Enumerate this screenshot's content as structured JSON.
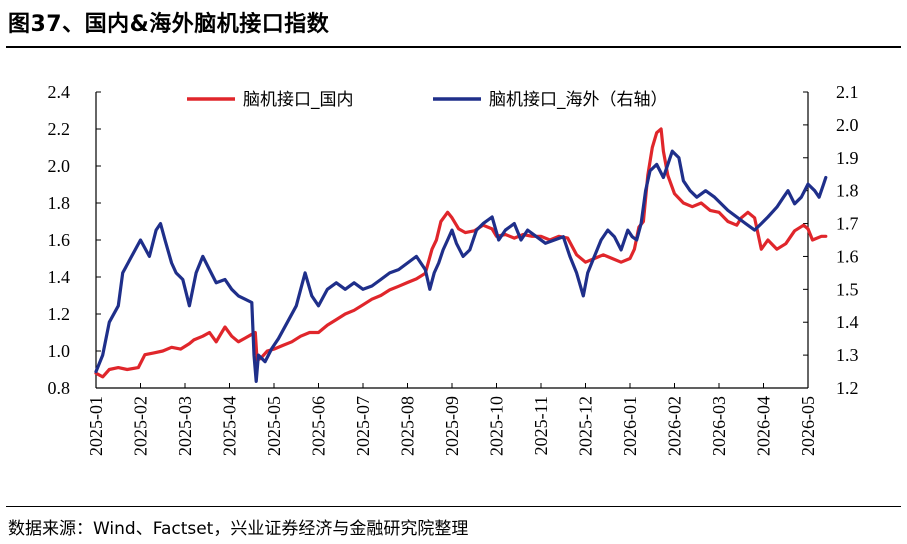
{
  "header": {
    "title": "图37、国内&海外脑机接口指数"
  },
  "footer": {
    "source": "数据来源：Wind、Factset，兴业证券经济与金融研究院整理"
  },
  "chart_data": {
    "type": "line",
    "xlabel": "",
    "ylabel": "",
    "categories": [
      "2025-01",
      "2025-02",
      "2025-03",
      "2025-04",
      "2025-05",
      "2025-06",
      "2025-07",
      "2025-08",
      "2025-09",
      "2025-10",
      "2025-11",
      "2025-12",
      "2026-01",
      "2026-02",
      "2026-03",
      "2026-04",
      "2026-05"
    ],
    "ylim_left": [
      0.8,
      2.4
    ],
    "ylim_right": [
      1.2,
      2.1
    ],
    "yticks_left": [
      "0.8",
      "1.0",
      "1.2",
      "1.4",
      "1.6",
      "1.8",
      "2.0",
      "2.2",
      "2.4"
    ],
    "yticks_right": [
      "1.2",
      "1.3",
      "1.4",
      "1.5",
      "1.6",
      "1.7",
      "1.8",
      "1.9",
      "2.0",
      "2.1"
    ],
    "legend_position": "top",
    "grid": false,
    "series": [
      {
        "name": "脑机接口_国内",
        "axis": "left",
        "color": "#e0262b",
        "points": [
          [
            0.0,
            0.88
          ],
          [
            0.15,
            0.86
          ],
          [
            0.3,
            0.9
          ],
          [
            0.5,
            0.91
          ],
          [
            0.7,
            0.9
          ],
          [
            0.95,
            0.91
          ],
          [
            1.1,
            0.98
          ],
          [
            1.3,
            0.99
          ],
          [
            1.5,
            1.0
          ],
          [
            1.7,
            1.02
          ],
          [
            1.9,
            1.01
          ],
          [
            2.1,
            1.04
          ],
          [
            2.2,
            1.06
          ],
          [
            2.4,
            1.08
          ],
          [
            2.55,
            1.1
          ],
          [
            2.7,
            1.05
          ],
          [
            2.8,
            1.09
          ],
          [
            2.9,
            1.13
          ],
          [
            3.05,
            1.08
          ],
          [
            3.2,
            1.05
          ],
          [
            3.35,
            1.07
          ],
          [
            3.5,
            1.09
          ],
          [
            3.58,
            1.1
          ],
          [
            3.62,
            0.95
          ],
          [
            3.7,
            0.96
          ],
          [
            3.85,
            1.0
          ],
          [
            4.0,
            1.01
          ],
          [
            4.2,
            1.03
          ],
          [
            4.4,
            1.05
          ],
          [
            4.6,
            1.08
          ],
          [
            4.8,
            1.1
          ],
          [
            5.0,
            1.1
          ],
          [
            5.2,
            1.14
          ],
          [
            5.4,
            1.17
          ],
          [
            5.6,
            1.2
          ],
          [
            5.8,
            1.22
          ],
          [
            6.0,
            1.25
          ],
          [
            6.2,
            1.28
          ],
          [
            6.4,
            1.3
          ],
          [
            6.6,
            1.33
          ],
          [
            6.8,
            1.35
          ],
          [
            7.0,
            1.37
          ],
          [
            7.2,
            1.39
          ],
          [
            7.4,
            1.42
          ],
          [
            7.55,
            1.55
          ],
          [
            7.65,
            1.6
          ],
          [
            7.75,
            1.7
          ],
          [
            7.9,
            1.75
          ],
          [
            8.0,
            1.72
          ],
          [
            8.15,
            1.66
          ],
          [
            8.3,
            1.64
          ],
          [
            8.5,
            1.65
          ],
          [
            8.7,
            1.68
          ],
          [
            8.9,
            1.66
          ],
          [
            9.0,
            1.62
          ],
          [
            9.2,
            1.63
          ],
          [
            9.4,
            1.61
          ],
          [
            9.6,
            1.63
          ],
          [
            9.8,
            1.62
          ],
          [
            10.0,
            1.62
          ],
          [
            10.2,
            1.6
          ],
          [
            10.4,
            1.62
          ],
          [
            10.6,
            1.61
          ],
          [
            10.8,
            1.52
          ],
          [
            11.0,
            1.48
          ],
          [
            11.2,
            1.5
          ],
          [
            11.4,
            1.52
          ],
          [
            11.6,
            1.5
          ],
          [
            11.8,
            1.48
          ],
          [
            12.0,
            1.5
          ],
          [
            12.1,
            1.55
          ],
          [
            12.2,
            1.67
          ],
          [
            12.3,
            1.7
          ],
          [
            12.4,
            1.95
          ],
          [
            12.5,
            2.1
          ],
          [
            12.6,
            2.18
          ],
          [
            12.7,
            2.2
          ],
          [
            12.75,
            2.08
          ],
          [
            12.85,
            1.95
          ],
          [
            13.0,
            1.85
          ],
          [
            13.2,
            1.8
          ],
          [
            13.4,
            1.78
          ],
          [
            13.6,
            1.8
          ],
          [
            13.8,
            1.76
          ],
          [
            14.0,
            1.75
          ],
          [
            14.2,
            1.7
          ],
          [
            14.4,
            1.68
          ],
          [
            14.5,
            1.72
          ],
          [
            14.65,
            1.75
          ],
          [
            14.8,
            1.72
          ],
          [
            14.95,
            1.55
          ],
          [
            15.1,
            1.6
          ],
          [
            15.3,
            1.55
          ],
          [
            15.5,
            1.58
          ],
          [
            15.7,
            1.65
          ],
          [
            15.9,
            1.68
          ],
          [
            16.0,
            1.66
          ],
          [
            16.1,
            1.6
          ],
          [
            16.3,
            1.62
          ],
          [
            16.4,
            1.62
          ]
        ]
      },
      {
        "name": "脑机接口_海外（右轴）",
        "axis": "right",
        "color": "#1f2f8a",
        "points": [
          [
            0.0,
            1.25
          ],
          [
            0.15,
            1.3
          ],
          [
            0.3,
            1.4
          ],
          [
            0.5,
            1.45
          ],
          [
            0.6,
            1.55
          ],
          [
            0.8,
            1.6
          ],
          [
            1.0,
            1.65
          ],
          [
            1.2,
            1.6
          ],
          [
            1.35,
            1.68
          ],
          [
            1.45,
            1.7
          ],
          [
            1.55,
            1.65
          ],
          [
            1.7,
            1.58
          ],
          [
            1.8,
            1.55
          ],
          [
            1.95,
            1.53
          ],
          [
            2.1,
            1.45
          ],
          [
            2.25,
            1.55
          ],
          [
            2.4,
            1.6
          ],
          [
            2.55,
            1.56
          ],
          [
            2.7,
            1.52
          ],
          [
            2.9,
            1.53
          ],
          [
            3.05,
            1.5
          ],
          [
            3.2,
            1.48
          ],
          [
            3.35,
            1.47
          ],
          [
            3.5,
            1.46
          ],
          [
            3.55,
            1.3
          ],
          [
            3.6,
            1.22
          ],
          [
            3.65,
            1.3
          ],
          [
            3.8,
            1.28
          ],
          [
            3.95,
            1.32
          ],
          [
            4.1,
            1.35
          ],
          [
            4.3,
            1.4
          ],
          [
            4.5,
            1.45
          ],
          [
            4.6,
            1.5
          ],
          [
            4.7,
            1.55
          ],
          [
            4.85,
            1.48
          ],
          [
            5.0,
            1.45
          ],
          [
            5.2,
            1.5
          ],
          [
            5.4,
            1.52
          ],
          [
            5.6,
            1.5
          ],
          [
            5.8,
            1.52
          ],
          [
            6.0,
            1.5
          ],
          [
            6.2,
            1.51
          ],
          [
            6.4,
            1.53
          ],
          [
            6.6,
            1.55
          ],
          [
            6.8,
            1.56
          ],
          [
            7.0,
            1.58
          ],
          [
            7.2,
            1.6
          ],
          [
            7.4,
            1.56
          ],
          [
            7.5,
            1.5
          ],
          [
            7.6,
            1.55
          ],
          [
            7.7,
            1.58
          ],
          [
            7.8,
            1.62
          ],
          [
            7.9,
            1.65
          ],
          [
            8.0,
            1.68
          ],
          [
            8.1,
            1.64
          ],
          [
            8.25,
            1.6
          ],
          [
            8.4,
            1.62
          ],
          [
            8.55,
            1.68
          ],
          [
            8.7,
            1.7
          ],
          [
            8.9,
            1.72
          ],
          [
            9.05,
            1.65
          ],
          [
            9.2,
            1.68
          ],
          [
            9.4,
            1.7
          ],
          [
            9.55,
            1.65
          ],
          [
            9.7,
            1.68
          ],
          [
            9.9,
            1.66
          ],
          [
            10.1,
            1.64
          ],
          [
            10.3,
            1.65
          ],
          [
            10.5,
            1.66
          ],
          [
            10.65,
            1.6
          ],
          [
            10.8,
            1.55
          ],
          [
            10.95,
            1.48
          ],
          [
            11.05,
            1.55
          ],
          [
            11.2,
            1.6
          ],
          [
            11.35,
            1.65
          ],
          [
            11.5,
            1.68
          ],
          [
            11.65,
            1.66
          ],
          [
            11.8,
            1.62
          ],
          [
            11.95,
            1.68
          ],
          [
            12.05,
            1.66
          ],
          [
            12.15,
            1.65
          ],
          [
            12.25,
            1.7
          ],
          [
            12.35,
            1.8
          ],
          [
            12.45,
            1.86
          ],
          [
            12.6,
            1.88
          ],
          [
            12.75,
            1.84
          ],
          [
            12.95,
            1.92
          ],
          [
            13.1,
            1.9
          ],
          [
            13.2,
            1.83
          ],
          [
            13.35,
            1.8
          ],
          [
            13.5,
            1.78
          ],
          [
            13.7,
            1.8
          ],
          [
            13.9,
            1.78
          ],
          [
            14.05,
            1.76
          ],
          [
            14.2,
            1.74
          ],
          [
            14.4,
            1.72
          ],
          [
            14.6,
            1.7
          ],
          [
            14.8,
            1.68
          ],
          [
            14.95,
            1.7
          ],
          [
            15.1,
            1.72
          ],
          [
            15.3,
            1.75
          ],
          [
            15.45,
            1.78
          ],
          [
            15.55,
            1.8
          ],
          [
            15.7,
            1.76
          ],
          [
            15.85,
            1.78
          ],
          [
            16.0,
            1.82
          ],
          [
            16.15,
            1.8
          ],
          [
            16.25,
            1.78
          ],
          [
            16.35,
            1.82
          ],
          [
            16.4,
            1.84
          ]
        ]
      }
    ]
  }
}
